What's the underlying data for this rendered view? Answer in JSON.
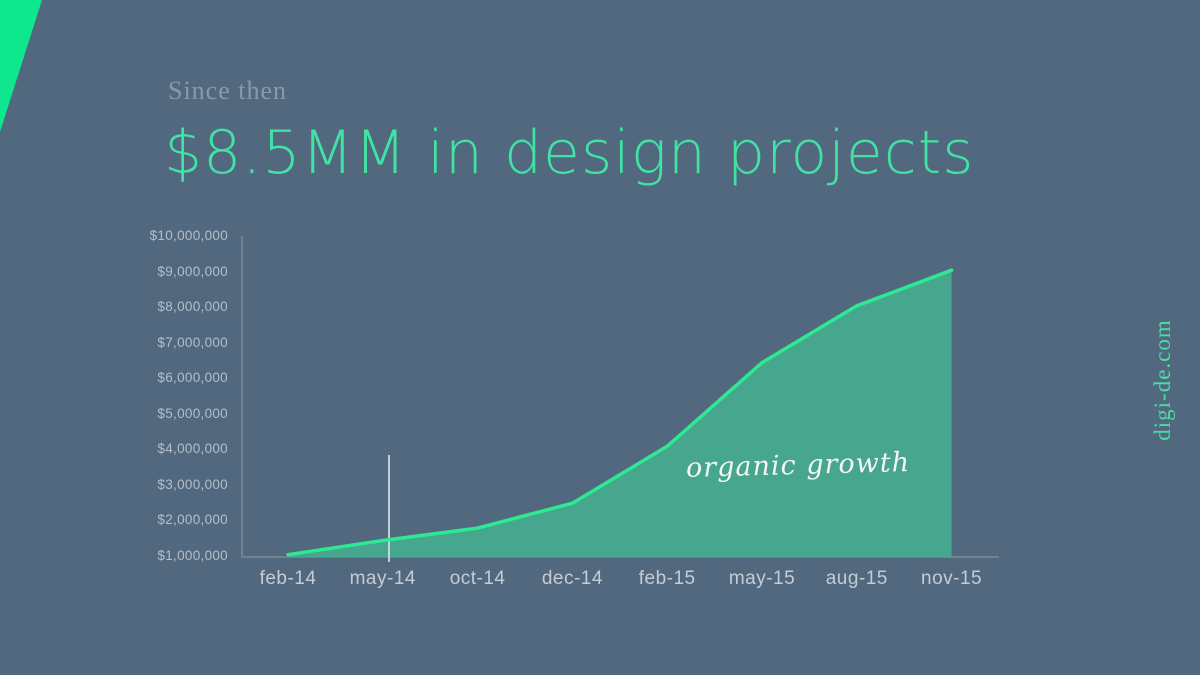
{
  "slide": {
    "kicker": "Since then",
    "title": "$8.5MM in design projects",
    "annotation": "organic growth",
    "watermark": "digi-de.com"
  },
  "colors": {
    "background": "#51687E",
    "accent_triangle": "#0EE78D",
    "title_green": "#40E3A3",
    "kicker_gray": "#8A99A9",
    "line_green": "#2DE992",
    "area_teal": "#47A68E",
    "axis_gray": "#73808E",
    "y_tick_label": "#B4BEC9",
    "x_tick_label": "#C6CCD4",
    "annotation_white": "#F3F6F4",
    "marker_line": "#D8DDE2",
    "watermark_green": "#49DFA1"
  },
  "chart_data": {
    "type": "area",
    "title": "$8.5MM in design projects",
    "categories": [
      "feb-14",
      "may-14",
      "oct-14",
      "dec-14",
      "feb-15",
      "may-15",
      "aug-15",
      "nov-15"
    ],
    "values": [
      1050000,
      1450000,
      1800000,
      2500000,
      4100000,
      6450000,
      8050000,
      9050000
    ],
    "series_name": "organic growth",
    "xlabel": "",
    "ylabel": "",
    "ylim": [
      1000000,
      10000000
    ],
    "y_ticks": [
      "$10,000,000",
      "$9,000,000",
      "$8,000,000",
      "$7,000,000",
      "$6,000,000",
      "$5,000,000",
      "$4,000,000",
      "$3,000,000",
      "$2,000,000",
      "$1,000,000"
    ],
    "annotation": "organic growth",
    "marker_line_at": "may-14",
    "grid": false,
    "legend": false
  }
}
